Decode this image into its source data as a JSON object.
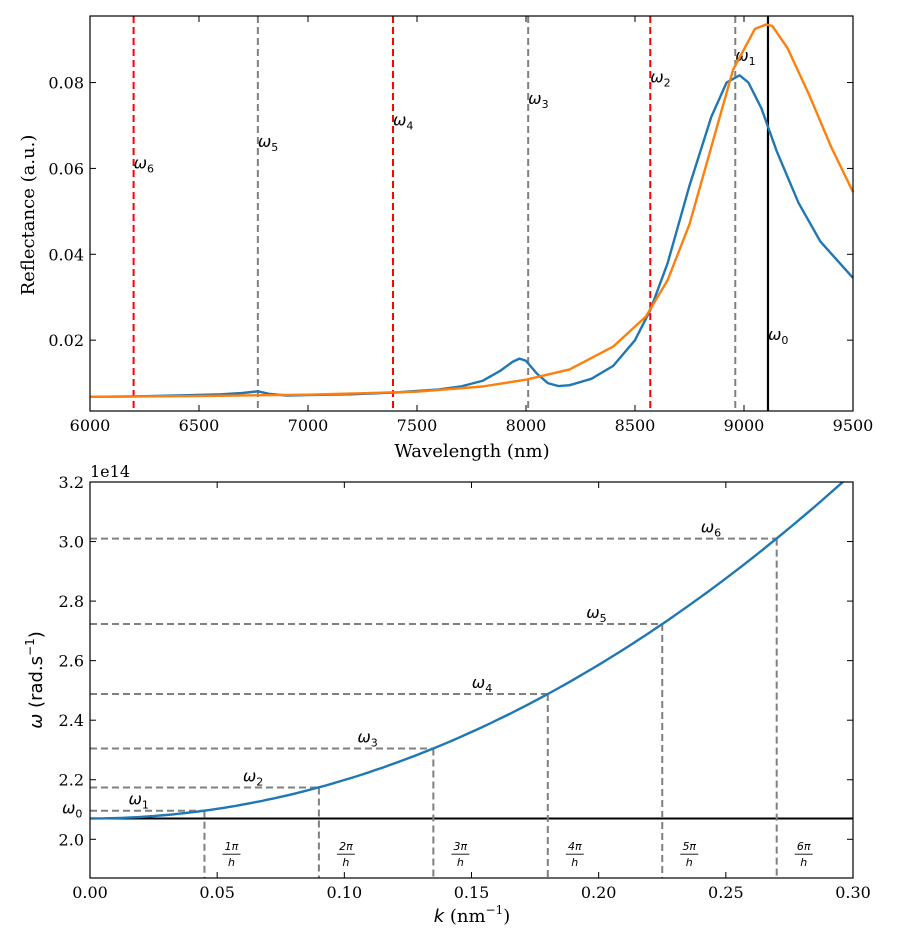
{
  "chart_data": [
    {
      "type": "line",
      "xlabel": "Wavelength (nm)",
      "ylabel": "Reflectance (a.u.)",
      "xlim": [
        6000,
        9500
      ],
      "ylim": [
        0.0035,
        0.0955
      ],
      "xticks": [
        6000,
        6500,
        7000,
        7500,
        8000,
        8500,
        9000,
        9500
      ],
      "xtick_labels": [
        "6000",
        "6500",
        "7000",
        "7500",
        "8000",
        "8500",
        "9000",
        "9500"
      ],
      "yticks": [
        0.02,
        0.04,
        0.06,
        0.08
      ],
      "ytick_labels": [
        "0.02",
        "0.04",
        "0.06",
        "0.08"
      ],
      "series": [
        {
          "name": "blue",
          "color": "#1f77b4",
          "x": [
            6000,
            6200,
            6400,
            6600,
            6700,
            6770,
            6820,
            6900,
            7000,
            7200,
            7400,
            7600,
            7700,
            7800,
            7880,
            7940,
            7970,
            8000,
            8050,
            8100,
            8150,
            8200,
            8300,
            8400,
            8500,
            8570,
            8650,
            8750,
            8850,
            8920,
            8980,
            9020,
            9080,
            9150,
            9250,
            9350,
            9500
          ],
          "y": [
            0.0068,
            0.0069,
            0.0071,
            0.0074,
            0.0077,
            0.0081,
            0.0075,
            0.0071,
            0.0072,
            0.0074,
            0.0078,
            0.0085,
            0.0092,
            0.0105,
            0.0128,
            0.015,
            0.0157,
            0.0152,
            0.0122,
            0.01,
            0.0093,
            0.0095,
            0.011,
            0.014,
            0.02,
            0.027,
            0.038,
            0.056,
            0.072,
            0.08,
            0.0817,
            0.08,
            0.074,
            0.064,
            0.052,
            0.043,
            0.0345
          ]
        },
        {
          "name": "orange",
          "color": "#ff7f0e",
          "x": [
            6000,
            6500,
            7000,
            7500,
            7800,
            8000,
            8200,
            8400,
            8550,
            8650,
            8750,
            8850,
            8950,
            9050,
            9100,
            9130,
            9200,
            9300,
            9400,
            9500
          ],
          "y": [
            0.0068,
            0.007,
            0.0073,
            0.008,
            0.0092,
            0.0108,
            0.0132,
            0.0185,
            0.0255,
            0.034,
            0.047,
            0.065,
            0.083,
            0.0925,
            0.0935,
            0.0932,
            0.088,
            0.077,
            0.065,
            0.0545
          ]
        }
      ],
      "vlines": [
        {
          "x": 6200,
          "color": "#ff0000",
          "style": "dashed",
          "label": "ω",
          "sub": "6",
          "label_y": 0.06
        },
        {
          "x": 6770,
          "color": "#808080",
          "style": "dashed",
          "label": "ω",
          "sub": "5",
          "label_y": 0.065
        },
        {
          "x": 7390,
          "color": "#ff0000",
          "style": "dashed",
          "label": "ω",
          "sub": "4",
          "label_y": 0.07
        },
        {
          "x": 8010,
          "color": "#808080",
          "style": "dashed",
          "label": "ω",
          "sub": "3",
          "label_y": 0.075
        },
        {
          "x": 8570,
          "color": "#ff0000",
          "style": "dashed",
          "label": "ω",
          "sub": "2",
          "label_y": 0.08
        },
        {
          "x": 8960,
          "color": "#808080",
          "style": "dashed",
          "label": "ω",
          "sub": "1",
          "label_y": 0.085
        },
        {
          "x": 9110,
          "color": "#000000",
          "style": "solid",
          "label": "ω",
          "sub": "0",
          "label_y": 0.02
        }
      ]
    },
    {
      "type": "line",
      "xlabel_italic": "k",
      "xlabel_rest": " (nm",
      "xlabel_sup": "−1",
      "xlabel_end": ")",
      "ylabel_italic": "ω",
      "ylabel_rest": " (rad.s",
      "ylabel_sup": "−1",
      "ylabel_end": ")",
      "offset_text": "1e14",
      "xlim": [
        0.0,
        0.3
      ],
      "ylim": [
        1.87,
        3.2
      ],
      "xticks": [
        0.0,
        0.05,
        0.1,
        0.15,
        0.2,
        0.25,
        0.3
      ],
      "xtick_labels": [
        "0.00",
        "0.05",
        "0.10",
        "0.15",
        "0.20",
        "0.25",
        "0.30"
      ],
      "yticks": [
        2.0,
        2.2,
        2.4,
        2.6,
        2.8,
        3.0,
        3.2
      ],
      "ytick_labels": [
        "2.0",
        "2.2",
        "2.4",
        "2.6",
        "2.8",
        "3.0",
        "3.2"
      ],
      "dispersion": {
        "omega0": 2.07,
        "coef": 12.9,
        "x_start": 0.0,
        "x_end": 0.3,
        "color": "#1f77b4"
      },
      "omega0_line": {
        "y": 2.07,
        "color": "#000000",
        "label": "ω",
        "sub": "0"
      },
      "modes": [
        {
          "k": 0.045,
          "omega": 2.096,
          "label": "ω",
          "sub": "1",
          "frac_num": "1π",
          "frac_den": "h"
        },
        {
          "k": 0.09,
          "omega": 2.174,
          "label": "ω",
          "sub": "2",
          "frac_num": "2π",
          "frac_den": "h"
        },
        {
          "k": 0.135,
          "omega": 2.305,
          "label": "ω",
          "sub": "3",
          "frac_num": "3π",
          "frac_den": "h"
        },
        {
          "k": 0.18,
          "omega": 2.488,
          "label": "ω",
          "sub": "4",
          "frac_num": "4π",
          "frac_den": "h"
        },
        {
          "k": 0.225,
          "omega": 2.723,
          "label": "ω",
          "sub": "5",
          "frac_num": "5π",
          "frac_den": "h"
        },
        {
          "k": 0.27,
          "omega": 3.01,
          "label": "ω",
          "sub": "6",
          "frac_num": "6π",
          "frac_den": "h"
        }
      ]
    }
  ]
}
